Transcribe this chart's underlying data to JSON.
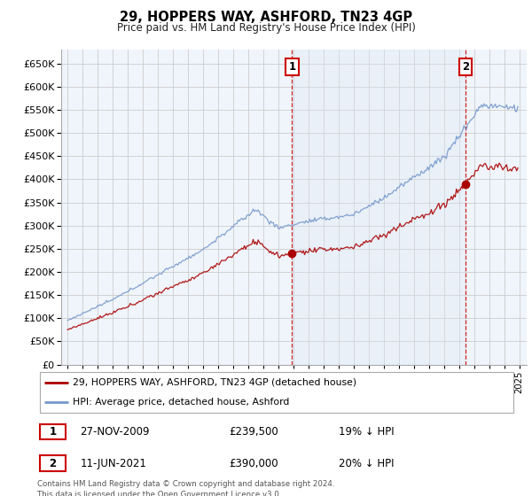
{
  "title": "29, HOPPERS WAY, ASHFORD, TN23 4GP",
  "subtitle": "Price paid vs. HM Land Registry's House Price Index (HPI)",
  "ylim": [
    0,
    680000
  ],
  "yticks": [
    0,
    50000,
    100000,
    150000,
    200000,
    250000,
    300000,
    350000,
    400000,
    450000,
    500000,
    550000,
    600000,
    650000
  ],
  "sale1_date": 2009.917,
  "sale1_price": 239500,
  "sale2_date": 2021.44,
  "sale2_price": 390000,
  "legend_label1": "29, HOPPERS WAY, ASHFORD, TN23 4GP (detached house)",
  "legend_label2": "HPI: Average price, detached house, Ashford",
  "annotation1_date": "27-NOV-2009",
  "annotation1_price": "£239,500",
  "annotation1_hpi": "19% ↓ HPI",
  "annotation2_date": "11-JUN-2021",
  "annotation2_price": "£390,000",
  "annotation2_hpi": "20% ↓ HPI",
  "footer": "Contains HM Land Registry data © Crown copyright and database right 2024.\nThis data is licensed under the Open Government Licence v3.0.",
  "line_color_red": "#aa0000",
  "line_color_blue": "#7799cc",
  "fill_color_blue": "#dce8f5",
  "background_color": "#ffffff",
  "grid_color": "#cccccc",
  "annotation_box_color": "#cc0000",
  "xmin": 1995,
  "xmax": 2025
}
